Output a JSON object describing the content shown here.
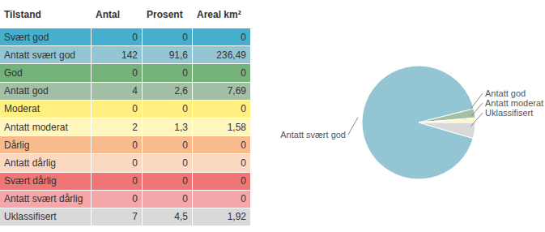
{
  "table": {
    "header": [
      "Tilstand",
      "Antal",
      "Prosent",
      "Areal km²"
    ],
    "rows": [
      [
        "Svært god",
        "0",
        "0",
        "0"
      ],
      [
        "Antatt svært god",
        "142",
        "91,6",
        "236,49"
      ],
      [
        "God",
        "0",
        "0",
        "0"
      ],
      [
        "Antatt god",
        "4",
        "2,6",
        "7,69"
      ],
      [
        "Moderat",
        "0",
        "0",
        "0"
      ],
      [
        "Antatt moderat",
        "2",
        "1,3",
        "1,58"
      ],
      [
        "Dårlig",
        "0",
        "0",
        "0"
      ],
      [
        "Antatt dårlig",
        "0",
        "0",
        "0"
      ],
      [
        "Svært dårlig",
        "0",
        "0",
        "0"
      ],
      [
        "Antatt svært dårlig",
        "0",
        "0",
        "0"
      ],
      [
        "Uklassifisert",
        "7",
        "4,5",
        "1,92"
      ]
    ],
    "colors": [
      "#46afcd",
      "#93c5d3",
      "#74b27a",
      "#a3bfa6",
      "#fff07f",
      "#fff6bd",
      "#f8bb8e",
      "#fbd8c2",
      "#f07575",
      "#f4a6a9",
      "#d9d9d9"
    ]
  },
  "chart_data": {
    "type": "pie",
    "categories": [
      "Antatt svært god",
      "Antatt god",
      "Antatt moderat",
      "Uklassifisert"
    ],
    "values": [
      91.6,
      2.6,
      1.3,
      4.5
    ],
    "colors": [
      "#93c5d3",
      "#a3bfa6",
      "#fff6bd",
      "#d9d9d9"
    ]
  }
}
